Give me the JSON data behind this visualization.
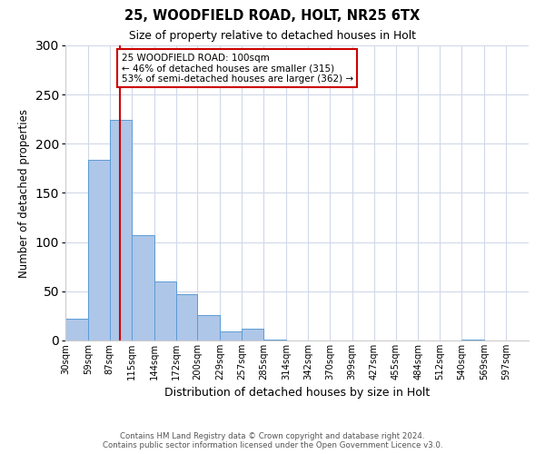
{
  "title": "25, WOODFIELD ROAD, HOLT, NR25 6TX",
  "subtitle": "Size of property relative to detached houses in Holt",
  "xlabel": "Distribution of detached houses by size in Holt",
  "ylabel": "Number of detached properties",
  "bar_labels": [
    "30sqm",
    "59sqm",
    "87sqm",
    "115sqm",
    "144sqm",
    "172sqm",
    "200sqm",
    "229sqm",
    "257sqm",
    "285sqm",
    "314sqm",
    "342sqm",
    "370sqm",
    "399sqm",
    "427sqm",
    "455sqm",
    "484sqm",
    "512sqm",
    "540sqm",
    "569sqm",
    "597sqm"
  ],
  "bar_heights": [
    22,
    184,
    224,
    107,
    60,
    47,
    26,
    9,
    12,
    1,
    0,
    0,
    0,
    0,
    0,
    0,
    0,
    0,
    1,
    0,
    0
  ],
  "bar_color": "#aec6e8",
  "bar_edge_color": "#5b9bd5",
  "bin_edges": [
    30,
    59,
    87,
    115,
    144,
    172,
    200,
    229,
    257,
    285,
    314,
    342,
    370,
    399,
    427,
    455,
    484,
    512,
    540,
    569,
    597,
    626
  ],
  "vline_x": 100,
  "vline_color": "#cc0000",
  "annotation_text": "25 WOODFIELD ROAD: 100sqm\n← 46% of detached houses are smaller (315)\n53% of semi-detached houses are larger (362) →",
  "annotation_box_color": "#cc0000",
  "ylim": [
    0,
    300
  ],
  "yticks": [
    0,
    50,
    100,
    150,
    200,
    250,
    300
  ],
  "background_color": "#ffffff",
  "grid_color": "#d0d8e8",
  "footer_line1": "Contains HM Land Registry data © Crown copyright and database right 2024.",
  "footer_line2": "Contains public sector information licensed under the Open Government Licence v3.0."
}
